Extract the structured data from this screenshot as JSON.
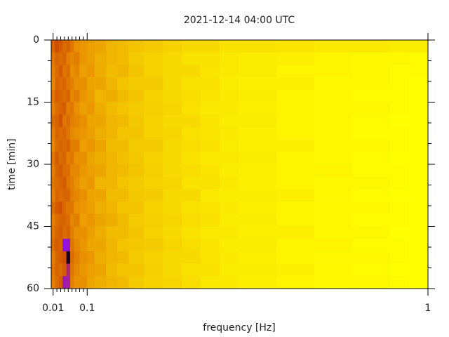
{
  "chart_data": {
    "type": "heatmap",
    "title": "2021-12-14 04:00 UTC",
    "x_label": "frequency [Hz]",
    "y_label": "time [min]",
    "xlim": [
      0.005,
      1
    ],
    "ylim": [
      0,
      60
    ],
    "y_inverted": true,
    "xticks": [
      0.01,
      0.1,
      1
    ],
    "xminorticks": [
      0.02,
      0.03,
      0.04,
      0.05,
      0.06,
      0.07,
      0.08,
      0.09
    ],
    "yticks": [
      0,
      15,
      30,
      45,
      60
    ],
    "yminorticks": [
      5,
      10,
      20,
      25,
      35,
      40,
      50,
      55
    ],
    "colormap": [
      {
        "value": 0,
        "color": "#000000"
      },
      {
        "value": 0.3,
        "color": "#9010e8"
      },
      {
        "value": 0.5,
        "color": "#c83800"
      },
      {
        "value": 0.7,
        "color": "#e89000"
      },
      {
        "value": 1,
        "color": "#ffff00"
      }
    ],
    "x_edges": [
      0.005,
      0.015,
      0.025,
      0.035,
      0.045,
      0.055,
      0.065,
      0.08,
      0.1,
      0.12,
      0.15,
      0.18,
      0.21,
      0.25,
      0.3,
      0.35,
      0.4,
      0.45,
      0.5,
      0.6,
      0.7,
      0.8,
      0.9,
      0.95,
      1
    ],
    "y_edges": [
      0,
      3,
      6,
      9,
      12,
      15,
      18,
      21,
      24,
      27,
      30,
      33,
      36,
      39,
      42,
      45,
      48,
      51,
      54,
      57,
      60
    ],
    "z": [
      [
        0.6,
        0.55,
        0.58,
        0.62,
        0.6,
        0.64,
        0.7,
        0.72,
        0.74,
        0.76,
        0.8,
        0.82,
        0.84,
        0.86,
        0.88,
        0.9,
        0.9,
        0.92,
        0.92,
        0.93,
        0.94,
        0.94,
        0.95,
        0.95
      ],
      [
        0.64,
        0.6,
        0.62,
        0.6,
        0.66,
        0.68,
        0.66,
        0.72,
        0.74,
        0.78,
        0.8,
        0.82,
        0.86,
        0.88,
        0.9,
        0.92,
        0.92,
        0.94,
        0.95,
        0.96,
        0.97,
        0.98,
        0.98,
        0.99
      ],
      [
        0.66,
        0.62,
        0.58,
        0.64,
        0.62,
        0.7,
        0.68,
        0.74,
        0.72,
        0.78,
        0.82,
        0.8,
        0.84,
        0.88,
        0.9,
        0.9,
        0.93,
        0.94,
        0.95,
        0.97,
        0.97,
        0.98,
        0.99,
        0.99
      ],
      [
        0.68,
        0.6,
        0.62,
        0.6,
        0.64,
        0.66,
        0.7,
        0.7,
        0.76,
        0.76,
        0.8,
        0.84,
        0.86,
        0.86,
        0.9,
        0.92,
        0.92,
        0.95,
        0.96,
        0.96,
        0.98,
        0.98,
        0.99,
        1
      ],
      [
        0.64,
        0.58,
        0.6,
        0.62,
        0.6,
        0.68,
        0.66,
        0.72,
        0.74,
        0.8,
        0.78,
        0.82,
        0.84,
        0.88,
        0.9,
        0.91,
        0.93,
        0.94,
        0.95,
        0.97,
        0.98,
        0.99,
        0.99,
        1
      ],
      [
        0.66,
        0.62,
        0.6,
        0.58,
        0.66,
        0.64,
        0.7,
        0.74,
        0.72,
        0.78,
        0.82,
        0.84,
        0.86,
        0.87,
        0.89,
        0.92,
        0.94,
        0.94,
        0.96,
        0.97,
        0.98,
        0.98,
        0.99,
        1
      ],
      [
        0.62,
        0.6,
        0.56,
        0.64,
        0.62,
        0.66,
        0.68,
        0.7,
        0.76,
        0.76,
        0.8,
        0.82,
        0.85,
        0.88,
        0.9,
        0.9,
        0.93,
        0.95,
        0.95,
        0.97,
        0.98,
        0.99,
        1,
        1
      ],
      [
        0.66,
        0.6,
        0.62,
        0.6,
        0.64,
        0.68,
        0.7,
        0.72,
        0.74,
        0.78,
        0.8,
        0.84,
        0.84,
        0.88,
        0.89,
        0.92,
        0.93,
        0.94,
        0.96,
        0.97,
        0.98,
        0.99,
        0.99,
        1
      ],
      [
        0.68,
        0.62,
        0.6,
        0.62,
        0.6,
        0.66,
        0.66,
        0.74,
        0.72,
        0.76,
        0.82,
        0.82,
        0.86,
        0.86,
        0.9,
        0.91,
        0.92,
        0.95,
        0.96,
        0.96,
        0.98,
        0.98,
        0.99,
        1
      ],
      [
        0.64,
        0.58,
        0.62,
        0.6,
        0.66,
        0.64,
        0.7,
        0.7,
        0.76,
        0.78,
        0.8,
        0.83,
        0.85,
        0.88,
        0.9,
        0.92,
        0.94,
        0.94,
        0.95,
        0.97,
        0.98,
        0.99,
        1,
        1
      ],
      [
        0.66,
        0.6,
        0.58,
        0.62,
        0.62,
        0.68,
        0.68,
        0.72,
        0.74,
        0.76,
        0.8,
        0.82,
        0.84,
        0.87,
        0.9,
        0.91,
        0.93,
        0.95,
        0.96,
        0.97,
        0.97,
        0.99,
        0.99,
        1
      ],
      [
        0.64,
        0.62,
        0.6,
        0.58,
        0.64,
        0.66,
        0.7,
        0.74,
        0.72,
        0.8,
        0.8,
        0.84,
        0.86,
        0.88,
        0.89,
        0.92,
        0.92,
        0.94,
        0.96,
        0.97,
        0.98,
        0.98,
        0.99,
        1
      ],
      [
        0.66,
        0.6,
        0.62,
        0.6,
        0.6,
        0.66,
        0.68,
        0.7,
        0.76,
        0.76,
        0.82,
        0.82,
        0.85,
        0.86,
        0.9,
        0.9,
        0.94,
        0.95,
        0.95,
        0.96,
        0.98,
        0.99,
        1,
        1
      ],
      [
        0.62,
        0.58,
        0.56,
        0.62,
        0.64,
        0.64,
        0.7,
        0.72,
        0.74,
        0.78,
        0.8,
        0.84,
        0.84,
        0.88,
        0.9,
        0.92,
        0.93,
        0.94,
        0.96,
        0.97,
        0.98,
        0.98,
        0.99,
        1
      ],
      [
        0.66,
        0.62,
        0.6,
        0.6,
        0.62,
        0.68,
        0.66,
        0.74,
        0.72,
        0.76,
        0.78,
        0.82,
        0.86,
        0.87,
        0.89,
        0.91,
        0.92,
        0.95,
        0.95,
        0.97,
        0.98,
        0.99,
        0.99,
        1
      ],
      [
        0.64,
        0.6,
        0.58,
        0.62,
        0.6,
        0.66,
        0.7,
        0.7,
        0.74,
        0.78,
        0.82,
        0.82,
        0.84,
        0.88,
        0.9,
        0.92,
        0.94,
        0.94,
        0.96,
        0.96,
        0.98,
        0.98,
        1,
        1
      ],
      [
        0.62,
        0.58,
        0.6,
        0.3,
        0.32,
        0.64,
        0.68,
        0.72,
        0.76,
        0.76,
        0.8,
        0.84,
        0.85,
        0.86,
        0.89,
        0.91,
        0.93,
        0.95,
        0.95,
        0.97,
        0.97,
        0.99,
        0.99,
        1
      ],
      [
        0.66,
        0.6,
        0.58,
        0.56,
        0.05,
        0.62,
        0.66,
        0.7,
        0.72,
        0.78,
        0.8,
        0.82,
        0.86,
        0.88,
        0.9,
        0.9,
        0.93,
        0.94,
        0.96,
        0.97,
        0.98,
        0.98,
        0.99,
        1
      ],
      [
        0.64,
        0.6,
        0.62,
        0.58,
        0.4,
        0.64,
        0.68,
        0.72,
        0.74,
        0.76,
        0.82,
        0.84,
        0.84,
        0.87,
        0.9,
        0.92,
        0.92,
        0.95,
        0.95,
        0.96,
        0.98,
        0.99,
        1,
        1
      ],
      [
        0.66,
        0.62,
        0.58,
        0.35,
        0.36,
        0.66,
        0.7,
        0.7,
        0.76,
        0.78,
        0.8,
        0.82,
        0.86,
        0.88,
        0.89,
        0.91,
        0.94,
        0.94,
        0.96,
        0.97,
        0.98,
        0.98,
        0.99,
        1
      ]
    ]
  }
}
